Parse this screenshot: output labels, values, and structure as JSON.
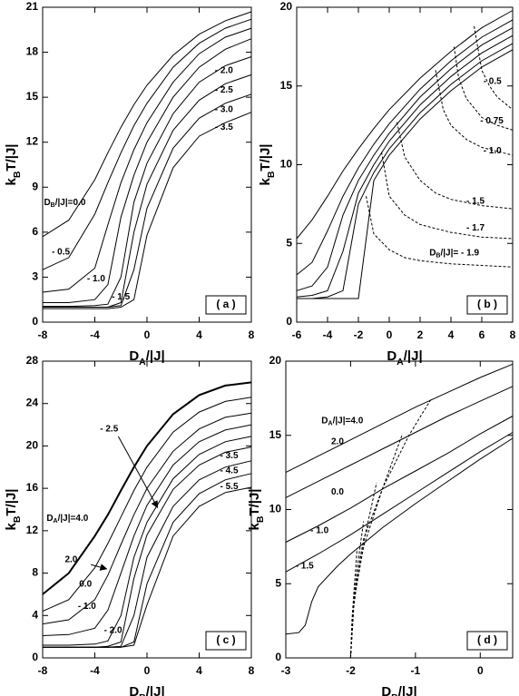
{
  "chart_data": [
    {
      "type": "line",
      "color": "#000000",
      "xlabel": "DA/|J|",
      "ylabel": "kBT/|J|",
      "panel_label": "( a )",
      "xlim": [
        -8,
        8
      ],
      "ylim": [
        0,
        21
      ],
      "xticks": [
        -8,
        -4,
        0,
        4,
        8
      ],
      "yticks": [
        0,
        3,
        6,
        9,
        12,
        15,
        18,
        21
      ],
      "series": [
        {
          "name": "DB/|J|=0.0",
          "x": [
            -8,
            -6,
            -4,
            -3,
            -2,
            -1,
            0,
            2,
            4,
            6,
            8
          ],
          "values": [
            5.7,
            6.8,
            9.5,
            11.3,
            13.0,
            14.5,
            15.8,
            17.8,
            19.2,
            20.1,
            20.7
          ]
        },
        {
          "name": "- 0.5",
          "x": [
            -8,
            -6,
            -4,
            -3,
            -2,
            -1,
            0,
            2,
            4,
            6,
            8
          ],
          "values": [
            3.5,
            4.3,
            7.2,
            9.3,
            11.3,
            13.1,
            14.6,
            17.0,
            18.6,
            19.6,
            20.2
          ]
        },
        {
          "name": "- 1.0",
          "x": [
            -8,
            -6,
            -4,
            -3,
            -2,
            -1,
            0,
            2,
            4,
            6,
            8
          ],
          "values": [
            2.0,
            2.2,
            3.6,
            6.5,
            9.3,
            11.5,
            13.3,
            16.0,
            17.9,
            19.0,
            19.6
          ]
        },
        {
          "name": "- 1.5",
          "x": [
            -8,
            -6,
            -4,
            -3,
            -2,
            -1,
            0,
            2,
            4,
            6,
            8
          ],
          "values": [
            1.3,
            1.3,
            1.5,
            2.5,
            7.0,
            9.8,
            12.0,
            15.0,
            17.0,
            18.2,
            18.9
          ]
        },
        {
          "name": "- 2.0",
          "x": [
            -8,
            -6,
            -4,
            -3,
            -2,
            -1,
            0,
            2,
            4,
            6,
            8
          ],
          "values": [
            1.05,
            1.05,
            1.1,
            1.2,
            3.0,
            8.0,
            10.6,
            13.9,
            16.0,
            17.1,
            17.7
          ]
        },
        {
          "name": "- 2.5",
          "x": [
            -8,
            -6,
            -4,
            -3,
            -2,
            -1,
            0,
            2,
            4,
            6,
            8
          ],
          "values": [
            1.0,
            1.0,
            1.0,
            1.0,
            1.3,
            6.0,
            9.2,
            12.8,
            14.8,
            15.9,
            16.5
          ]
        },
        {
          "name": "- 3.0",
          "x": [
            -8,
            -6,
            -4,
            -3,
            -2,
            -1,
            0,
            2,
            4,
            6,
            8
          ],
          "values": [
            1.0,
            1.0,
            1.0,
            1.0,
            1.1,
            3.5,
            7.6,
            11.6,
            13.6,
            14.6,
            15.2
          ]
        },
        {
          "name": "- 3.5",
          "x": [
            -8,
            -6,
            -4,
            -3,
            -2,
            -1,
            0,
            2,
            4,
            6,
            8
          ],
          "values": [
            0.9,
            0.9,
            0.9,
            0.9,
            1.0,
            1.5,
            5.8,
            10.3,
            12.4,
            13.3,
            14.0
          ]
        }
      ]
    },
    {
      "type": "line",
      "color": "#000000",
      "xlabel": "DA/|J|",
      "ylabel": "kBT/|J|",
      "panel_label": "( b )",
      "xlim": [
        -6,
        8
      ],
      "ylim": [
        0,
        20
      ],
      "xticks": [
        -6,
        -4,
        -2,
        0,
        2,
        4,
        6,
        8
      ],
      "yticks": [
        0,
        5,
        10,
        15,
        20
      ],
      "series": [
        {
          "x": [
            -6,
            -5,
            -4,
            -3,
            -2,
            -1,
            0,
            2,
            4,
            6,
            8
          ],
          "values": [
            5.3,
            6.5,
            8.0,
            9.6,
            11.0,
            12.3,
            13.5,
            15.5,
            17.2,
            18.7,
            19.8
          ]
        },
        {
          "x": [
            -6,
            -5,
            -4,
            -3,
            -2,
            -1,
            0,
            2,
            4,
            6,
            8
          ],
          "values": [
            3.0,
            3.8,
            5.8,
            8.0,
            9.8,
            11.3,
            12.6,
            14.8,
            16.6,
            18.1,
            19.2
          ]
        },
        {
          "x": [
            -6,
            -5,
            -4,
            -3,
            -2,
            -1,
            0,
            2,
            4,
            6,
            8
          ],
          "values": [
            2.0,
            2.3,
            3.5,
            6.8,
            9.0,
            10.6,
            12.0,
            14.3,
            16.1,
            17.6,
            18.7
          ]
        },
        {
          "x": [
            -6,
            -5,
            -4,
            -3,
            -2,
            -1,
            0,
            2,
            4,
            6,
            8
          ],
          "values": [
            1.6,
            1.7,
            2.0,
            4.5,
            8.2,
            10.0,
            11.5,
            13.8,
            15.6,
            17.1,
            18.2
          ]
        },
        {
          "x": [
            -6,
            -5,
            -4,
            -3,
            -2,
            -1,
            0,
            2,
            4,
            6,
            8
          ],
          "values": [
            1.5,
            1.5,
            1.6,
            2.0,
            7.5,
            9.5,
            11.0,
            13.3,
            15.1,
            16.6,
            17.7
          ]
        },
        {
          "x": [
            -6,
            -5,
            -4,
            -3,
            -2,
            -1,
            0,
            2,
            4,
            6,
            8
          ],
          "values": [
            1.5,
            1.5,
            1.5,
            1.5,
            1.5,
            9.0,
            10.6,
            12.9,
            14.7,
            16.2,
            17.3
          ]
        },
        {
          "name": "- 0.5",
          "dash": true,
          "x": [
            5.5,
            6,
            6.5,
            7,
            8
          ],
          "values": [
            18.8,
            16.0,
            15.0,
            14.3,
            13.5
          ]
        },
        {
          "name": "- 0.75",
          "dash": true,
          "x": [
            4.2,
            4.5,
            5,
            6,
            7,
            8
          ],
          "values": [
            17.5,
            15.5,
            14.2,
            13.0,
            12.5,
            12.2
          ]
        },
        {
          "name": "- 1.0",
          "dash": true,
          "x": [
            3,
            3.5,
            4,
            5,
            6,
            8
          ],
          "values": [
            16.0,
            13.5,
            12.5,
            11.6,
            11.1,
            10.6
          ]
        },
        {
          "name": "- 1.5",
          "dash": true,
          "x": [
            0.5,
            1,
            2,
            3,
            4,
            6,
            8
          ],
          "values": [
            12.7,
            10.5,
            9.0,
            8.2,
            7.8,
            7.4,
            7.2
          ]
        },
        {
          "name": "- 1.7",
          "dash": true,
          "x": [
            -0.5,
            0,
            1,
            2,
            4,
            6,
            8
          ],
          "values": [
            10.8,
            8.0,
            6.8,
            6.2,
            5.7,
            5.4,
            5.3
          ]
        },
        {
          "name": "DB/|J|= - 1.9",
          "dash": true,
          "x": [
            -1.5,
            -1,
            0,
            1,
            2,
            4,
            6,
            8
          ],
          "values": [
            8.0,
            5.6,
            4.6,
            4.1,
            3.9,
            3.7,
            3.6,
            3.5
          ]
        }
      ]
    },
    {
      "type": "line",
      "color": "#000000",
      "xlabel": "DB/|J|",
      "ylabel": "kBT/|J|",
      "panel_label": "( c )",
      "xlim": [
        -8,
        8
      ],
      "ylim": [
        0,
        28
      ],
      "xticks": [
        -8,
        -4,
        0,
        4,
        8
      ],
      "yticks": [
        0,
        4,
        8,
        12,
        16,
        20,
        24,
        28
      ],
      "series": [
        {
          "name": "DA/|J|=4.0",
          "width": 2,
          "x": [
            -8,
            -6,
            -4,
            -3,
            -2,
            -1,
            0,
            2,
            4,
            6,
            8
          ],
          "values": [
            6.0,
            8.0,
            11.5,
            13.5,
            15.8,
            18.0,
            20.0,
            23.0,
            24.8,
            25.7,
            26.0
          ]
        },
        {
          "name": "2.0",
          "x": [
            -8,
            -6,
            -4,
            -3,
            -2,
            -1,
            0,
            2,
            4,
            6,
            8
          ],
          "values": [
            4.4,
            5.5,
            8.5,
            10.8,
            13.3,
            15.8,
            18.0,
            21.3,
            23.2,
            24.2,
            24.6
          ]
        },
        {
          "name": "0.0",
          "x": [
            -8,
            -6,
            -4,
            -3,
            -2,
            -1,
            0,
            2,
            4,
            6,
            8
          ],
          "values": [
            3.2,
            3.6,
            5.5,
            7.8,
            10.7,
            13.5,
            16.0,
            19.5,
            21.6,
            22.7,
            23.1
          ]
        },
        {
          "name": "- 1.0",
          "x": [
            -8,
            -6,
            -4,
            -3,
            -2,
            -1,
            0,
            2,
            4,
            6,
            8
          ],
          "values": [
            2.1,
            2.2,
            2.8,
            4.5,
            8.0,
            11.5,
            14.4,
            18.2,
            20.4,
            21.5,
            22.0
          ]
        },
        {
          "name": "- 2.0",
          "x": [
            -8,
            -6,
            -4,
            -3,
            -2,
            -1,
            0,
            2,
            4,
            6,
            8
          ],
          "values": [
            1.2,
            1.2,
            1.3,
            1.6,
            4.0,
            9.5,
            12.8,
            16.9,
            19.2,
            20.4,
            20.9
          ]
        },
        {
          "name": "- 2.5",
          "x": [
            -8,
            -6,
            -4,
            -3,
            -2,
            -1,
            0,
            2,
            4,
            6,
            8
          ],
          "values": [
            1.0,
            1.0,
            1.0,
            1.1,
            1.5,
            7.5,
            11.6,
            15.9,
            18.2,
            19.4,
            19.9
          ]
        },
        {
          "name": "- 3.5",
          "x": [
            -8,
            -6,
            -4,
            -3,
            -2,
            -1,
            0,
            2,
            4,
            6,
            8
          ],
          "values": [
            1.0,
            1.0,
            1.0,
            1.0,
            1.1,
            4.0,
            9.5,
            14.3,
            16.8,
            18.0,
            18.6
          ]
        },
        {
          "name": "- 4.5",
          "x": [
            -8,
            -6,
            -4,
            -3,
            -2,
            -1,
            0,
            2,
            4,
            6,
            8
          ],
          "values": [
            1.0,
            1.0,
            1.0,
            1.0,
            1.0,
            1.5,
            7.0,
            12.8,
            15.5,
            16.8,
            17.4
          ]
        },
        {
          "name": "- 5.5",
          "x": [
            -8,
            -6,
            -4,
            -3,
            -2,
            -1,
            0,
            2,
            4,
            6,
            8
          ],
          "values": [
            1.0,
            1.0,
            1.0,
            1.0,
            1.0,
            1.2,
            5.0,
            11.5,
            14.3,
            15.6,
            16.1
          ]
        }
      ]
    },
    {
      "type": "line",
      "color": "#000000",
      "xlabel": "DB/|J|",
      "ylabel": "kBT/|J|",
      "panel_label": "( d )",
      "xlim": [
        -3,
        0.5
      ],
      "ylim": [
        0,
        20
      ],
      "xticks": [
        -3,
        -2,
        -1,
        0
      ],
      "yticks": [
        0,
        5,
        10,
        15,
        20
      ],
      "series": [
        {
          "name": "DA/|J|=4.0",
          "x": [
            -3,
            -2.5,
            -2,
            -1.5,
            -1,
            -0.5,
            0,
            0.5
          ],
          "values": [
            12.5,
            13.6,
            14.7,
            15.8,
            16.9,
            17.9,
            18.9,
            19.8
          ]
        },
        {
          "name": "2.0",
          "x": [
            -3,
            -2.5,
            -2,
            -1.5,
            -1,
            -0.5,
            0,
            0.5
          ],
          "values": [
            10.8,
            11.9,
            13.0,
            14.1,
            15.2,
            16.3,
            17.3,
            18.3
          ]
        },
        {
          "name": "0.0",
          "x": [
            -3,
            -2.5,
            -2,
            -1.5,
            -1,
            -0.5,
            0,
            0.5
          ],
          "values": [
            7.8,
            8.9,
            10.1,
            11.4,
            12.6,
            13.8,
            15.1,
            16.3
          ]
        },
        {
          "name": "- 1.0",
          "x": [
            -3,
            -2.5,
            -2,
            -1.5,
            -1,
            -0.5,
            0,
            0.5
          ],
          "values": [
            5.8,
            7.0,
            8.3,
            9.7,
            11.1,
            12.5,
            13.9,
            15.2
          ]
        },
        {
          "name": "- 1.5",
          "x": [
            -3,
            -2.8,
            -2.7,
            -2.6,
            -2.5,
            -2.2,
            -2,
            -1.5,
            -1,
            -0.5,
            0,
            0.5
          ],
          "values": [
            1.6,
            1.7,
            2.2,
            3.8,
            4.8,
            6.2,
            7.0,
            8.8,
            10.4,
            11.9,
            13.4,
            14.8
          ]
        },
        {
          "dash": true,
          "x": [
            -2,
            -1.95,
            -1.8,
            -1.5,
            -1.1,
            -0.75
          ],
          "values": [
            0,
            4.0,
            8.0,
            11.5,
            15.0,
            17.5
          ]
        },
        {
          "dash": true,
          "x": [
            -2,
            -1.95,
            -1.8,
            -1.5,
            -1.2
          ],
          "values": [
            0,
            3.8,
            7.5,
            11.5,
            15.1
          ]
        },
        {
          "dash": true,
          "x": [
            -2,
            -1.95,
            -1.85,
            -1.7,
            -1.6
          ],
          "values": [
            0,
            3.5,
            6.8,
            9.8,
            11.8
          ]
        },
        {
          "dash": true,
          "x": [
            -2,
            -1.97,
            -1.9,
            -1.8
          ],
          "values": [
            0,
            3.0,
            6.0,
            9.2
          ]
        },
        {
          "dash": true,
          "x": [
            -2,
            -1.98,
            -1.94,
            -1.9
          ],
          "values": [
            0,
            2.5,
            5.0,
            7.4
          ]
        }
      ]
    }
  ]
}
